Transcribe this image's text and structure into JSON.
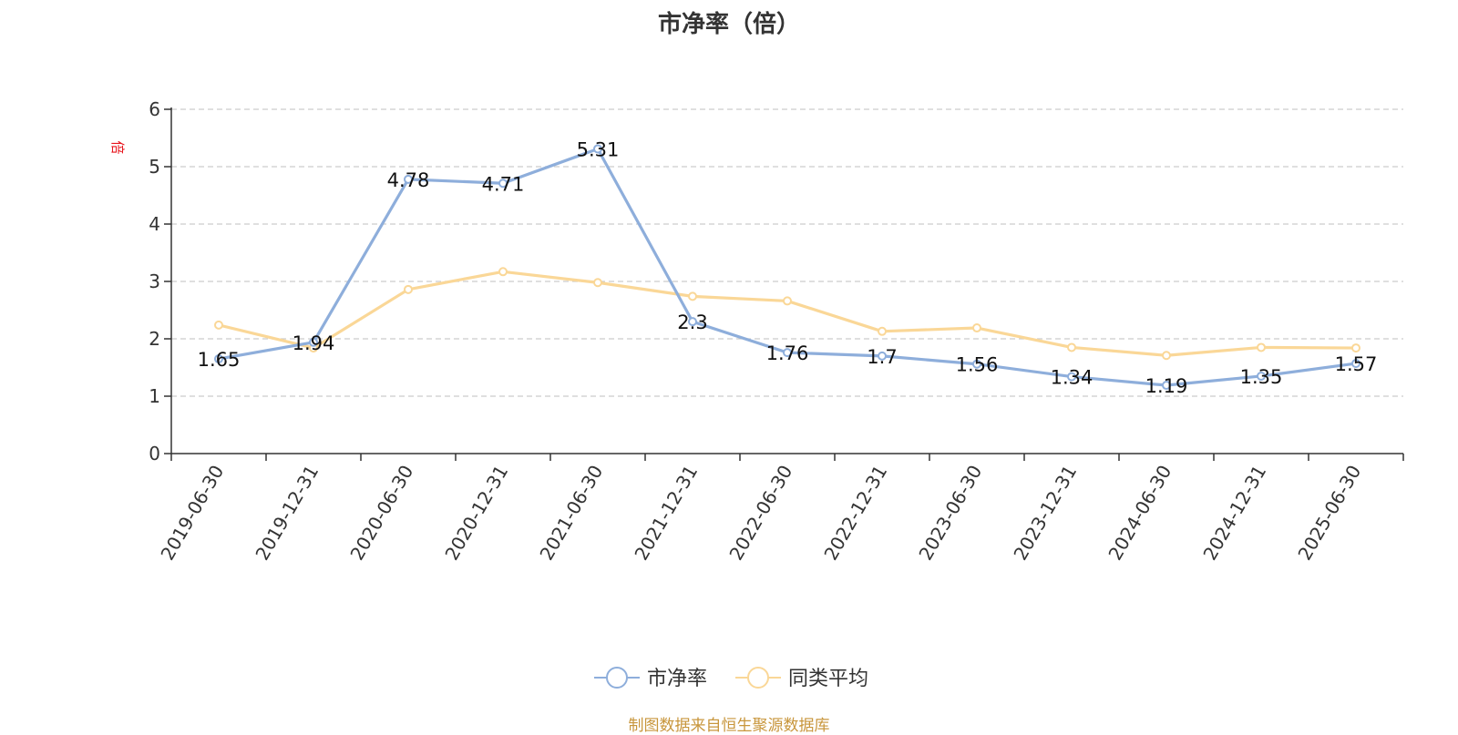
{
  "chart_data": {
    "type": "line",
    "title": "市净率（倍）",
    "ylabel": "倍",
    "xlabel": "",
    "ylim": [
      0,
      6
    ],
    "yticks": [
      0,
      1,
      2,
      3,
      4,
      5,
      6
    ],
    "grid": true,
    "legend_position": "bottom-center",
    "categories": [
      "2019-06-30",
      "2019-12-31",
      "2020-06-30",
      "2020-12-31",
      "2021-06-30",
      "2021-12-31",
      "2022-06-30",
      "2022-12-31",
      "2023-06-30",
      "2023-12-31",
      "2024-06-30",
      "2024-12-31",
      "2025-06-30"
    ],
    "series": [
      {
        "name": "市净率",
        "color": "#8eaedb",
        "values": [
          1.65,
          1.94,
          4.78,
          4.71,
          5.31,
          2.3,
          1.76,
          1.7,
          1.56,
          1.34,
          1.19,
          1.35,
          1.57
        ],
        "labels": [
          "1.65",
          "1.94",
          "4.78",
          "4.71",
          "5.31",
          "2.3",
          "1.76",
          "1.7",
          "1.56",
          "1.34",
          "1.19",
          "1.35",
          "1.57"
        ]
      },
      {
        "name": "同类平均",
        "color": "#fad797",
        "values": [
          2.24,
          1.84,
          2.86,
          3.17,
          2.98,
          2.74,
          2.66,
          2.13,
          2.19,
          1.85,
          1.71,
          1.85,
          1.84
        ]
      }
    ],
    "source": "制图数据来自恒生聚源数据库"
  }
}
